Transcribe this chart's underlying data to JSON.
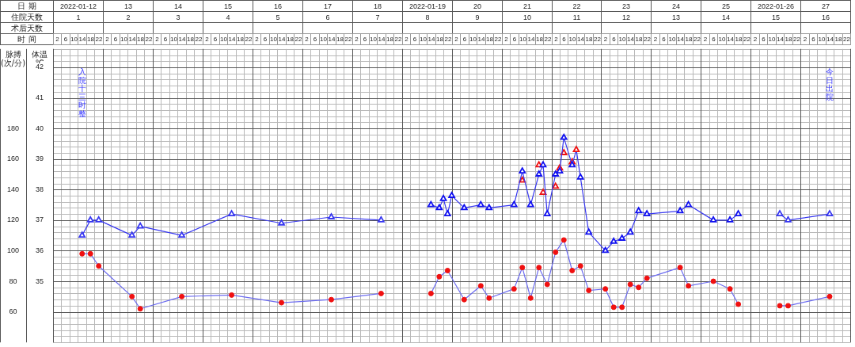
{
  "chart_data": {
    "type": "line",
    "x2label": "日 期",
    "xlabel": "时 间",
    "ylabel": "体温 ℃",
    "y2label": "脉搏 (次/分)",
    "annotations": [
      "住院天数",
      "1",
      "2",
      "3",
      "4",
      "5",
      "6",
      "7",
      "8",
      "9",
      "10",
      "11",
      "12",
      "13",
      "14",
      "15",
      "16",
      "术后天数",
      "入院十三时整",
      "今日出院"
    ],
    "xlim": [
      "2022-01-12T00:00",
      "2022-01-28T00:00"
    ],
    "x2lim": [
      "2022-01-12T00:00",
      "2022-01-28T00:00"
    ],
    "xticks": [
      {
        "value": "2022-01-12T02:00",
        "label": "2"
      },
      {
        "value": "2022-01-12T06:00",
        "label": "6"
      },
      {
        "value": "2022-01-12T10:00",
        "label": "10"
      },
      {
        "value": "2022-01-12T14:00",
        "label": "14"
      },
      {
        "value": "2022-01-12T18:00",
        "label": "18"
      },
      {
        "value": "2022-01-12T22:00",
        "label": "22"
      },
      {
        "value": "2022-01-13T02:00",
        "label": "2"
      },
      {
        "value": "2022-01-13T06:00",
        "label": "6"
      },
      {
        "value": "2022-01-13T10:00",
        "label": "10"
      },
      {
        "value": "2022-01-13T14:00",
        "label": "14"
      },
      {
        "value": "2022-01-13T18:00",
        "label": "18"
      },
      {
        "value": "2022-01-13T22:00",
        "label": "22"
      },
      {
        "value": "2022-01-14T02:00",
        "label": "2"
      },
      {
        "value": "2022-01-14T06:00",
        "label": "6"
      },
      {
        "value": "2022-01-14T10:00",
        "label": "10"
      },
      {
        "value": "2022-01-14T14:00",
        "label": "14"
      },
      {
        "value": "2022-01-14T18:00",
        "label": "18"
      },
      {
        "value": "2022-01-14T22:00",
        "label": "22"
      },
      {
        "value": "2022-01-15T02:00",
        "label": "2"
      },
      {
        "value": "2022-01-15T06:00",
        "label": "6"
      },
      {
        "value": "2022-01-15T10:00",
        "label": "10"
      },
      {
        "value": "2022-01-15T14:00",
        "label": "14"
      },
      {
        "value": "2022-01-15T18:00",
        "label": "18"
      },
      {
        "value": "2022-01-15T22:00",
        "label": "22"
      },
      {
        "value": "2022-01-16T02:00",
        "label": "2"
      },
      {
        "value": "2022-01-16T06:00",
        "label": "6"
      },
      {
        "value": "2022-01-16T10:00",
        "label": "10"
      },
      {
        "value": "2022-01-16T14:00",
        "label": "14"
      },
      {
        "value": "2022-01-16T18:00",
        "label": "18"
      },
      {
        "value": "2022-01-16T22:00",
        "label": "22"
      },
      {
        "value": "2022-01-17T02:00",
        "label": "2"
      },
      {
        "value": "2022-01-17T06:00",
        "label": "6"
      },
      {
        "value": "2022-01-17T10:00",
        "label": "10"
      },
      {
        "value": "2022-01-17T14:00",
        "label": "14"
      },
      {
        "value": "2022-01-17T18:00",
        "label": "18"
      },
      {
        "value": "2022-01-17T22:00",
        "label": "22"
      },
      {
        "value": "2022-01-18T02:00",
        "label": "2"
      },
      {
        "value": "2022-01-18T06:00",
        "label": "6"
      },
      {
        "value": "2022-01-18T10:00",
        "label": "10"
      },
      {
        "value": "2022-01-18T14:00",
        "label": "14"
      },
      {
        "value": "2022-01-18T18:00",
        "label": "18"
      },
      {
        "value": "2022-01-18T22:00",
        "label": "22"
      },
      {
        "value": "2022-01-19T02:00",
        "label": "2"
      },
      {
        "value": "2022-01-19T06:00",
        "label": "6"
      },
      {
        "value": "2022-01-19T10:00",
        "label": "10"
      },
      {
        "value": "2022-01-19T14:00",
        "label": "14"
      },
      {
        "value": "2022-01-19T18:00",
        "label": "18"
      },
      {
        "value": "2022-01-19T22:00",
        "label": "22"
      },
      {
        "value": "2022-01-20T02:00",
        "label": "2"
      },
      {
        "value": "2022-01-20T06:00",
        "label": "6"
      },
      {
        "value": "2022-01-20T10:00",
        "label": "10"
      },
      {
        "value": "2022-01-20T14:00",
        "label": "14"
      },
      {
        "value": "2022-01-20T18:00",
        "label": "18"
      },
      {
        "value": "2022-01-20T22:00",
        "label": "22"
      },
      {
        "value": "2022-01-21T02:00",
        "label": "2"
      },
      {
        "value": "2022-01-21T06:00",
        "label": "6"
      },
      {
        "value": "2022-01-21T10:00",
        "label": "10"
      },
      {
        "value": "2022-01-21T14:00",
        "label": "14"
      },
      {
        "value": "2022-01-21T18:00",
        "label": "18"
      },
      {
        "value": "2022-01-21T22:00",
        "label": "22"
      },
      {
        "value": "2022-01-22T02:00",
        "label": "2"
      },
      {
        "value": "2022-01-22T06:00",
        "label": "6"
      },
      {
        "value": "2022-01-22T10:00",
        "label": "10"
      },
      {
        "value": "2022-01-22T14:00",
        "label": "14"
      },
      {
        "value": "2022-01-22T18:00",
        "label": "18"
      },
      {
        "value": "2022-01-22T22:00",
        "label": "22"
      },
      {
        "value": "2022-01-23T02:00",
        "label": "2"
      },
      {
        "value": "2022-01-23T06:00",
        "label": "6"
      },
      {
        "value": "2022-01-23T10:00",
        "label": "10"
      },
      {
        "value": "2022-01-23T14:00",
        "label": "14"
      },
      {
        "value": "2022-01-23T18:00",
        "label": "18"
      },
      {
        "value": "2022-01-23T22:00",
        "label": "22"
      },
      {
        "value": "2022-01-24T02:00",
        "label": "2"
      },
      {
        "value": "2022-01-24T06:00",
        "label": "6"
      },
      {
        "value": "2022-01-24T10:00",
        "label": "10"
      },
      {
        "value": "2022-01-24T14:00",
        "label": "14"
      },
      {
        "value": "2022-01-24T18:00",
        "label": "18"
      },
      {
        "value": "2022-01-24T22:00",
        "label": "22"
      },
      {
        "value": "2022-01-25T02:00",
        "label": "2"
      },
      {
        "value": "2022-01-25T06:00",
        "label": "6"
      },
      {
        "value": "2022-01-25T10:00",
        "label": "10"
      },
      {
        "value": "2022-01-25T14:00",
        "label": "14"
      },
      {
        "value": "2022-01-25T18:00",
        "label": "18"
      },
      {
        "value": "2022-01-25T22:00",
        "label": "22"
      },
      {
        "value": "2022-01-26T02:00",
        "label": "2"
      },
      {
        "value": "2022-01-26T06:00",
        "label": "6"
      },
      {
        "value": "2022-01-26T10:00",
        "label": "10"
      },
      {
        "value": "2022-01-26T14:00",
        "label": "14"
      },
      {
        "value": "2022-01-26T18:00",
        "label": "18"
      },
      {
        "value": "2022-01-26T22:00",
        "label": "22"
      },
      {
        "value": "2022-01-27T02:00",
        "label": "2"
      },
      {
        "value": "2022-01-27T06:00",
        "label": "6"
      },
      {
        "value": "2022-01-27T10:00",
        "label": "10"
      },
      {
        "value": "2022-01-27T14:00",
        "label": "14"
      },
      {
        "value": "2022-01-27T18:00",
        "label": "18"
      },
      {
        "value": "2022-01-27T22:00",
        "label": "22"
      }
    ],
    "x2ticks": [
      {
        "value": "2022-01-12T12:00",
        "label": "2022-01-12"
      },
      {
        "value": "2022-01-13T12:00",
        "label": "13"
      },
      {
        "value": "2022-01-14T12:00",
        "label": "14"
      },
      {
        "value": "2022-01-15T12:00",
        "label": "15"
      },
      {
        "value": "2022-01-16T12:00",
        "label": "16"
      },
      {
        "value": "2022-01-17T12:00",
        "label": "17"
      },
      {
        "value": "2022-01-18T12:00",
        "label": "18"
      },
      {
        "value": "2022-01-19T12:00",
        "label": "2022-01-19"
      },
      {
        "value": "2022-01-20T12:00",
        "label": "20"
      },
      {
        "value": "2022-01-21T12:00",
        "label": "21"
      },
      {
        "value": "2022-01-22T12:00",
        "label": "22"
      },
      {
        "value": "2022-01-23T12:00",
        "label": "23"
      },
      {
        "value": "2022-01-24T12:00",
        "label": "24"
      },
      {
        "value": "2022-01-25T12:00",
        "label": "25"
      },
      {
        "value": "2022-01-26T12:00",
        "label": "2022-01-26"
      },
      {
        "value": "2022-01-27T12:00",
        "label": "27"
      }
    ],
    "ylim": [
      33,
      42.6
    ],
    "yticks": [
      35,
      36,
      37,
      38,
      39,
      40,
      41,
      42
    ],
    "y2lim": [
      40,
      232
    ],
    "y2ticks": [
      60,
      80,
      100,
      120,
      140,
      160,
      180
    ],
    "grid": true,
    "series": [
      {
        "type": "line",
        "marker": "triangle",
        "color": "#3838f0",
        "x": [
          "2022-01-12T14:00",
          "2022-01-12T18:00",
          "2022-01-12T22:00",
          "2022-01-13T14:00",
          "2022-01-13T18:00",
          "2022-01-14T14:00",
          "2022-01-15T14:00",
          "2022-01-16T14:00",
          "2022-01-17T14:00",
          "2022-01-18T14:00"
        ],
        "values": [
          36.5,
          37.0,
          37.0,
          36.5,
          36.8,
          36.5,
          37.2,
          36.9,
          37.1,
          37.0
        ]
      },
      {
        "type": "line",
        "marker": "triangle",
        "color": "#3838f0",
        "x": [
          "2022-01-19T14:00",
          "2022-01-19T18:00",
          "2022-01-19T20:00",
          "2022-01-19T22:00",
          "2022-01-20T00:00",
          "2022-01-20T06:00",
          "2022-01-20T14:00",
          "2022-01-20T18:00",
          "2022-01-21T06:00",
          "2022-01-21T10:00",
          "2022-01-21T14:00",
          "2022-01-21T18:00",
          "2022-01-21T20:00",
          "2022-01-21T22:00",
          "2022-01-22T02:00",
          "2022-01-22T04:00",
          "2022-01-22T06:00",
          "2022-01-22T10:00",
          "2022-01-22T12:00",
          "2022-01-22T14:00",
          "2022-01-22T18:00",
          "2022-01-23T02:00",
          "2022-01-23T06:00",
          "2022-01-23T10:00",
          "2022-01-23T14:00",
          "2022-01-23T18:00",
          "2022-01-23T22:00",
          "2022-01-24T14:00",
          "2022-01-24T18:00",
          "2022-01-25T06:00",
          "2022-01-25T14:00",
          "2022-01-25T18:00"
        ],
        "values": [
          37.5,
          37.4,
          37.7,
          37.2,
          37.8,
          37.4,
          37.5,
          37.4,
          37.5,
          38.6,
          37.5,
          38.5,
          38.8,
          37.2,
          38.5,
          38.6,
          39.7,
          38.8,
          39.3,
          38.4,
          36.6,
          36.0,
          36.3,
          36.4,
          36.6,
          37.3,
          37.2,
          37.3,
          37.5,
          37.0,
          37.0,
          37.2
        ],
        "colors": [
          "#1010f0",
          "#1010f0",
          "#1010f0",
          "#1010f0",
          "#1010f0",
          "#1010f0",
          "#1010f0",
          "#1010f0",
          "#1010f0",
          "#1010f0",
          "#1010f0",
          "#1010f0",
          "#1010f0",
          "#1010f0",
          "#1010f0",
          "#1010f0",
          "#1010f0",
          "#1010f0",
          "#f01010",
          "#1010f0",
          "#1010f0",
          "#1010f0",
          "#1010f0",
          "#1010f0",
          "#1010f0",
          "#1010f0",
          "#1010f0",
          "#1010f0",
          "#1010f0",
          "#1010f0",
          "#1010f0",
          "#1010f0"
        ]
      },
      {
        "type": "line",
        "marker": "triangle",
        "color": "#3838f0",
        "x": [
          "2022-01-26T14:00",
          "2022-01-26T18:00",
          "2022-01-27T14:00"
        ],
        "values": [
          37.2,
          37.0,
          37.2
        ]
      },
      {
        "type": "scatter",
        "marker": "triangle",
        "color": "#f01010",
        "x": [
          "2022-01-21T10:00",
          "2022-01-21T18:00",
          "2022-01-21T20:00",
          "2022-01-22T02:00",
          "2022-01-22T04:00",
          "2022-01-22T06:00",
          "2022-01-22T10:00"
        ],
        "values": [
          38.3,
          38.8,
          37.9,
          38.1,
          38.7,
          39.2,
          38.9
        ]
      },
      {
        "type": "line",
        "marker": "circle",
        "axis": "y2",
        "color": "#6b6bf0",
        "x": [
          "2022-01-12T14:00",
          "2022-01-12T18:00",
          "2022-01-12T22:00",
          "2022-01-13T14:00",
          "2022-01-13T18:00",
          "2022-01-14T14:00",
          "2022-01-15T14:00",
          "2022-01-16T14:00",
          "2022-01-17T14:00",
          "2022-01-18T14:00"
        ],
        "values": [
          98,
          98,
          90,
          70,
          62,
          70,
          71,
          66,
          68,
          72
        ],
        "colors": [
          "#f01010",
          "#f01010",
          "#f01010",
          "#f01010",
          "#f01010",
          "#f01010",
          "#f01010",
          "#f01010",
          "#f01010",
          "#f01010"
        ]
      },
      {
        "type": "line",
        "marker": "circle",
        "axis": "y2",
        "color": "#6b6bf0",
        "x": [
          "2022-01-19T14:00",
          "2022-01-19T18:00",
          "2022-01-19T22:00",
          "2022-01-20T06:00",
          "2022-01-20T14:00",
          "2022-01-20T18:00",
          "2022-01-21T06:00",
          "2022-01-21T10:00",
          "2022-01-21T14:00",
          "2022-01-21T18:00",
          "2022-01-21T22:00",
          "2022-01-22T02:00",
          "2022-01-22T06:00",
          "2022-01-22T10:00",
          "2022-01-22T14:00",
          "2022-01-22T18:00",
          "2022-01-23T02:00",
          "2022-01-23T06:00",
          "2022-01-23T10:00",
          "2022-01-23T14:00",
          "2022-01-23T18:00",
          "2022-01-23T22:00",
          "2022-01-24T14:00",
          "2022-01-24T18:00",
          "2022-01-25T06:00",
          "2022-01-25T14:00",
          "2022-01-25T18:00"
        ],
        "values": [
          72,
          83,
          87,
          68,
          77,
          69,
          75,
          89,
          69,
          89,
          78,
          99,
          107,
          87,
          90,
          74,
          75,
          63,
          63,
          78,
          76,
          82,
          89,
          77,
          80,
          75,
          65
        ],
        "colors": [
          "#f01010",
          "#f01010",
          "#f01010",
          "#f01010",
          "#f01010",
          "#f01010",
          "#f01010",
          "#f01010",
          "#f01010",
          "#f01010",
          "#f01010",
          "#f01010",
          "#f01010",
          "#f01010",
          "#f01010",
          "#f01010",
          "#f01010",
          "#f01010",
          "#f01010",
          "#f01010",
          "#f01010",
          "#f01010",
          "#f01010",
          "#f01010",
          "#f01010",
          "#f01010",
          "#f01010"
        ]
      },
      {
        "type": "line",
        "marker": "circle",
        "axis": "y2",
        "color": "#6b6bf0",
        "x": [
          "2022-01-26T14:00",
          "2022-01-26T18:00",
          "2022-01-27T14:00"
        ],
        "values": [
          64,
          64,
          70
        ],
        "colors": [
          "#f01010",
          "#f01010",
          "#f01010"
        ]
      }
    ]
  }
}
